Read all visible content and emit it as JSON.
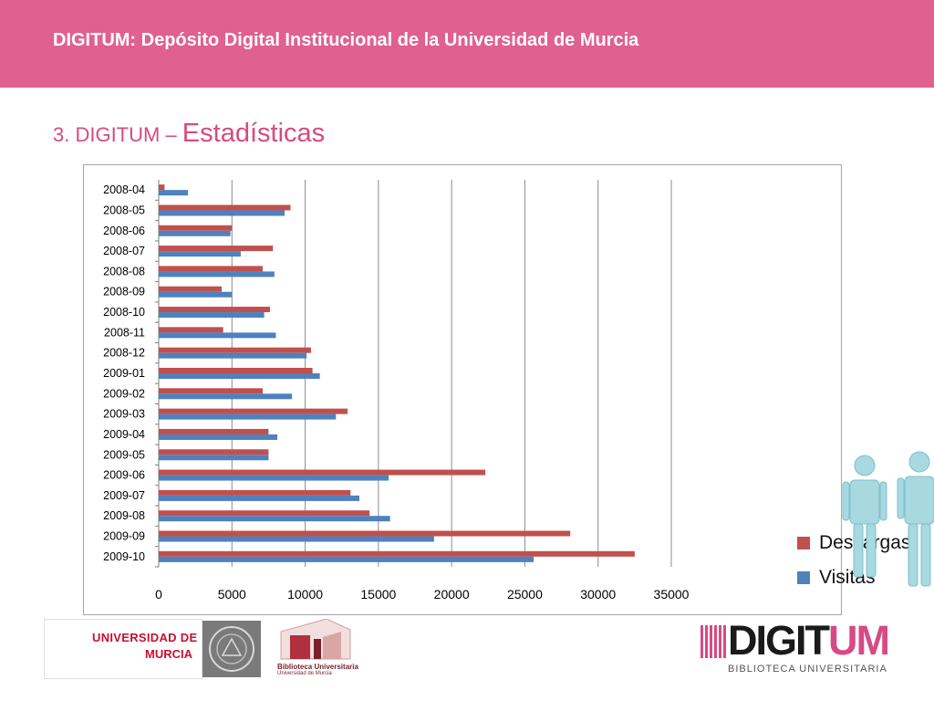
{
  "header": {
    "title": "DIGITUM: Depósito Digital Institucional de la Universidad de Murcia"
  },
  "section": {
    "prefix": "3. DIGITUM – ",
    "title": "Estadísticas"
  },
  "chart_data": {
    "type": "bar",
    "orientation": "horizontal",
    "categories": [
      "2008-04",
      "2008-05",
      "2008-06",
      "2008-07",
      "2008-08",
      "2008-09",
      "2008-10",
      "2008-11",
      "2008-12",
      "2009-01",
      "2009-02",
      "2009-03",
      "2009-04",
      "2009-05",
      "2009-06",
      "2009-07",
      "2009-08",
      "2009-09",
      "2009-10"
    ],
    "series": [
      {
        "name": "Descargas",
        "color": "#c0504d",
        "values": [
          400,
          9000,
          5000,
          7800,
          7100,
          4300,
          7600,
          4400,
          10400,
          10500,
          7100,
          12900,
          7500,
          7500,
          22300,
          13100,
          14400,
          28100,
          32500
        ]
      },
      {
        "name": "Visitas",
        "color": "#4f81bd",
        "values": [
          2000,
          8600,
          4900,
          5600,
          7900,
          5000,
          7200,
          8000,
          10100,
          11000,
          9100,
          12100,
          8100,
          7500,
          15700,
          13700,
          15800,
          18800,
          25600
        ]
      }
    ],
    "xlim": [
      0,
      35000
    ],
    "xticks": [
      "0",
      "5000",
      "10000",
      "15000",
      "20000",
      "25000",
      "30000",
      "35000"
    ],
    "grid": "vertical",
    "legend": "right"
  },
  "footer": {
    "um_line1": "UNIVERSIDAD DE",
    "um_line2": "MURCIA",
    "bib_line1": "Biblioteca Universitaria",
    "bib_line2": "Universidad de Murcia",
    "digitum_main": "DIGIT",
    "digitum_accent": "UM",
    "digitum_sub": "BIBLIOTECA UNIVERSITARIA"
  },
  "colors": {
    "banner": "#e06090",
    "accent": "#d84a7e"
  }
}
